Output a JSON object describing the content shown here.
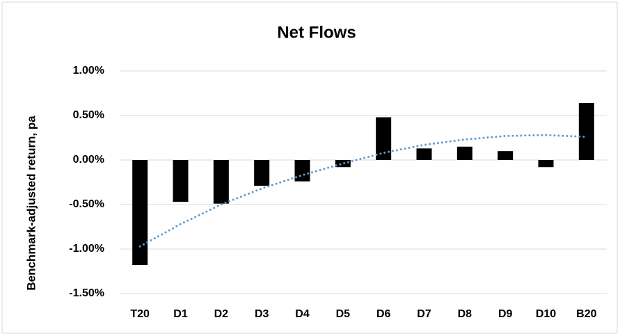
{
  "chart_data": {
    "type": "bar",
    "title": "Net Flows",
    "y_label": "Benchmark-adjusted return, pa",
    "categories": [
      "T20",
      "D1",
      "D2",
      "D3",
      "D4",
      "D5",
      "D6",
      "D7",
      "D8",
      "D9",
      "D10",
      "B20"
    ],
    "series": [
      {
        "type": "bar",
        "color": "#000000",
        "values": [
          -1.18,
          -0.47,
          -0.49,
          -0.29,
          -0.24,
          -0.08,
          0.48,
          0.13,
          0.15,
          0.1,
          -0.08,
          0.64
        ]
      },
      {
        "type": "line",
        "style": "dotted",
        "color": "#5b9bd5",
        "values": [
          -0.97,
          -0.72,
          -0.5,
          -0.32,
          -0.17,
          -0.04,
          0.08,
          0.17,
          0.23,
          0.27,
          0.28,
          0.26
        ]
      }
    ],
    "ylim": [
      -1.5,
      1.0
    ],
    "yticks": [
      {
        "value": -1.5,
        "label": "-1.50%"
      },
      {
        "value": -1.0,
        "label": "-1.00%"
      },
      {
        "value": -0.5,
        "label": "-0.50%"
      },
      {
        "value": 0,
        "label": "0.00%"
      },
      {
        "value": 0.5,
        "label": "0.50%"
      },
      {
        "value": 1.0,
        "label": "1.00%"
      }
    ],
    "grid": true
  }
}
